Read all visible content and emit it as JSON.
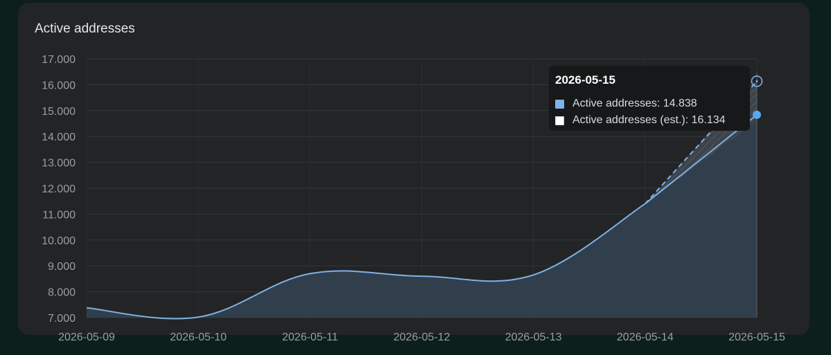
{
  "panel": {
    "title": "Active addresses"
  },
  "colors": {
    "background": "#0d1f1a",
    "card": "#222426",
    "line": "#7fb2e5",
    "area": "#33404e",
    "estimate_band": "#3c434b",
    "grid": "#34383c",
    "tick_text": "#9a9ea4",
    "marker": "#5aa7f0"
  },
  "chart_data": {
    "type": "area",
    "x": [
      "2026-05-09",
      "2026-05-10",
      "2026-05-11",
      "2026-05-12",
      "2026-05-13",
      "2026-05-14",
      "2026-05-15"
    ],
    "y_ticks": [
      "7.000",
      "8.000",
      "9.000",
      "10.000",
      "11.000",
      "12.000",
      "13.000",
      "14.000",
      "15.000",
      "16.000",
      "17.000"
    ],
    "ylim": [
      7000,
      17000
    ],
    "grid": true,
    "series": [
      {
        "name": "Active addresses",
        "values": [
          7380,
          7020,
          8700,
          8600,
          8650,
          11400,
          14838
        ]
      },
      {
        "name": "Active addresses (est.)",
        "values": [
          null,
          null,
          null,
          null,
          null,
          11400,
          16134
        ]
      }
    ],
    "estimate_band": {
      "x": [
        "2026-05-14",
        "2026-05-15"
      ],
      "low": [
        11400,
        14600
      ],
      "high": [
        11400,
        16134
      ]
    },
    "tooltip": {
      "title": "2026-05-15",
      "rows": [
        {
          "label": "Active addresses: 14.838",
          "swatch": "#7fb2e5"
        },
        {
          "label": "Active addresses (est.): 16.134",
          "swatch": "#ffffff"
        }
      ]
    }
  }
}
